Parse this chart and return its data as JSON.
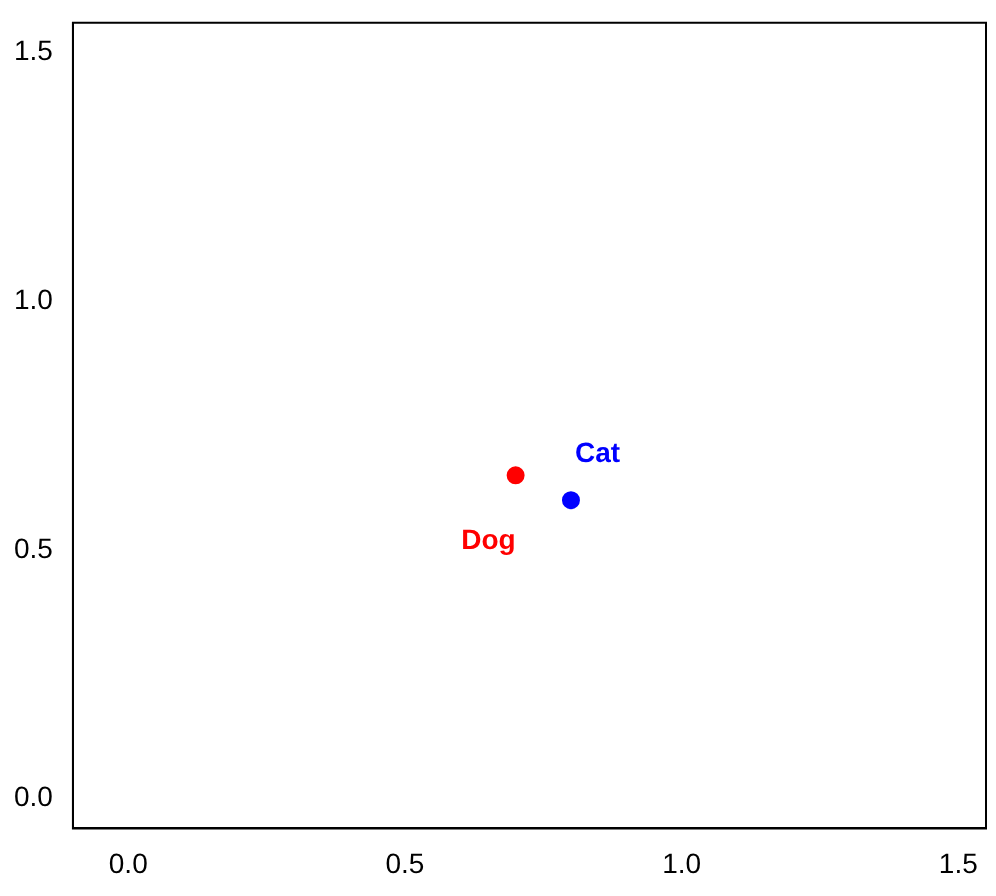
{
  "chart_data": {
    "type": "scatter",
    "series": [
      {
        "name": "Dog",
        "color": "#ff0000",
        "x": [
          0.7
        ],
        "values": [
          0.65
        ]
      },
      {
        "name": "Cat",
        "color": "#0000ff",
        "x": [
          0.8
        ],
        "values": [
          0.6
        ]
      }
    ],
    "xlim": [
      -0.1,
      1.55
    ],
    "ylim": [
      -0.06,
      1.56
    ],
    "xticks": [
      {
        "value": 0,
        "label": "0.0"
      },
      0.5,
      {
        "value": 1,
        "label": "1.0"
      },
      1.5
    ],
    "yticks": [
      {
        "value": 0,
        "label": "0.0"
      },
      0.5,
      {
        "value": 1,
        "label": "1.0"
      },
      1.5
    ],
    "grid": false,
    "legend": false,
    "marker": "circle"
  }
}
